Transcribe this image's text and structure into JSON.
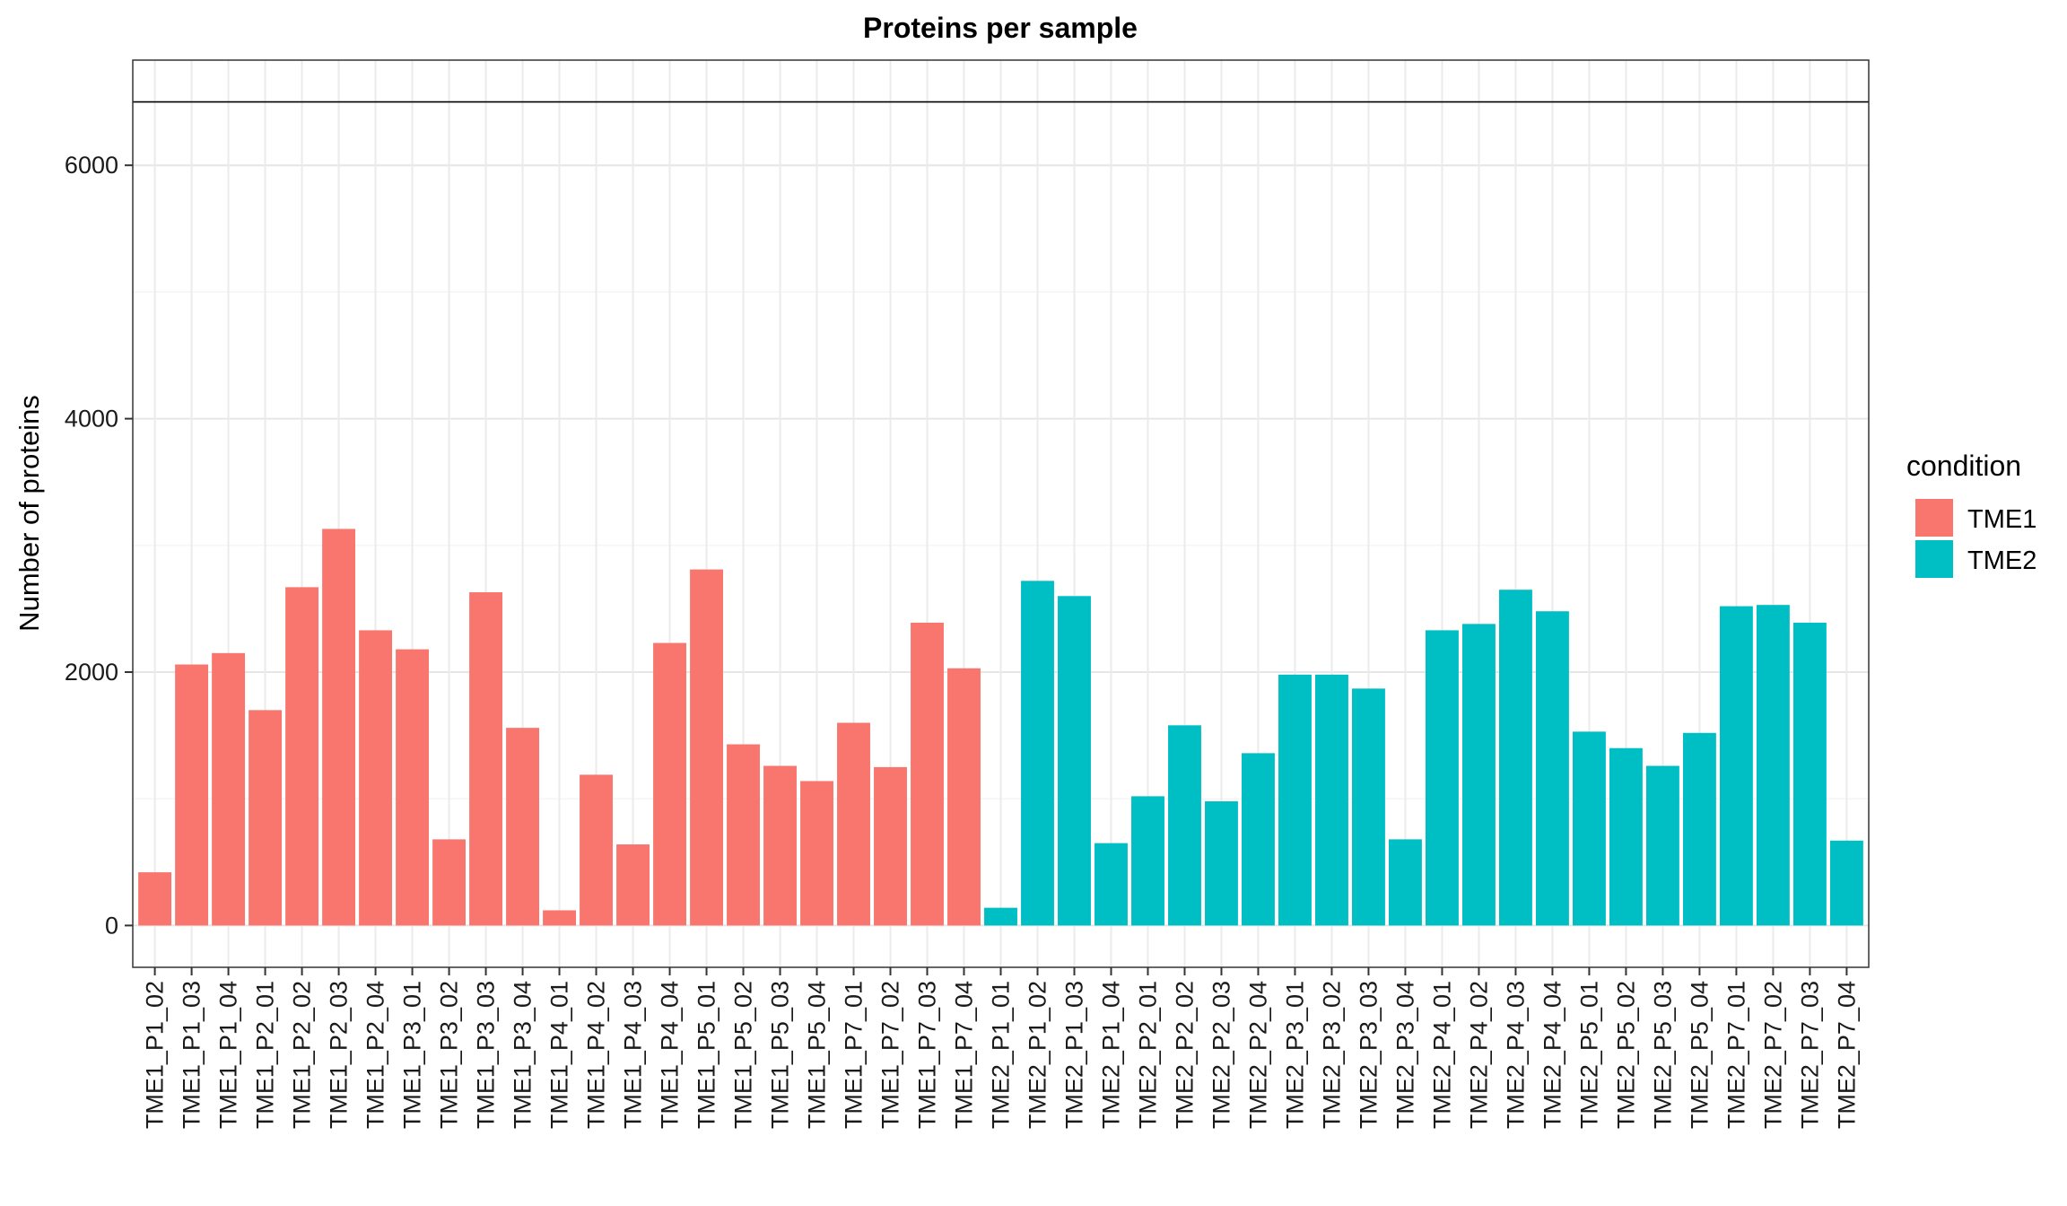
{
  "chart_data": {
    "type": "bar",
    "title": "Proteins per sample",
    "xlabel": "",
    "ylabel": "Number of proteins",
    "ylim": [
      -330,
      6830
    ],
    "yticks": [
      0,
      2000,
      4000,
      6000
    ],
    "reference_line": 6500,
    "grid": true,
    "legend": {
      "title": "condition",
      "position": "right",
      "entries": [
        {
          "label": "TME1",
          "color": "#F8766D"
        },
        {
          "label": "TME2",
          "color": "#00BFC4"
        }
      ]
    },
    "categories": [
      "TME1_P1_02",
      "TME1_P1_03",
      "TME1_P1_04",
      "TME1_P2_01",
      "TME1_P2_02",
      "TME1_P2_03",
      "TME1_P2_04",
      "TME1_P3_01",
      "TME1_P3_02",
      "TME1_P3_03",
      "TME1_P3_04",
      "TME1_P4_01",
      "TME1_P4_02",
      "TME1_P4_03",
      "TME1_P4_04",
      "TME1_P5_01",
      "TME1_P5_02",
      "TME1_P5_03",
      "TME1_P5_04",
      "TME1_P7_01",
      "TME1_P7_02",
      "TME1_P7_03",
      "TME1_P7_04",
      "TME2_P1_01",
      "TME2_P1_02",
      "TME2_P1_03",
      "TME2_P1_04",
      "TME2_P2_01",
      "TME2_P2_02",
      "TME2_P2_03",
      "TME2_P2_04",
      "TME2_P3_01",
      "TME2_P3_02",
      "TME2_P3_03",
      "TME2_P3_04",
      "TME2_P4_01",
      "TME2_P4_02",
      "TME2_P4_03",
      "TME2_P4_04",
      "TME2_P5_01",
      "TME2_P5_02",
      "TME2_P5_03",
      "TME2_P5_04",
      "TME2_P7_01",
      "TME2_P7_02",
      "TME2_P7_03",
      "TME2_P7_04"
    ],
    "values": [
      420,
      2060,
      2150,
      1700,
      2670,
      3130,
      2330,
      2180,
      680,
      2630,
      1560,
      120,
      1190,
      640,
      2230,
      2810,
      1430,
      1260,
      1140,
      1600,
      1250,
      2390,
      2030,
      140,
      2720,
      2600,
      650,
      1020,
      1580,
      980,
      1360,
      1980,
      1980,
      1870,
      680,
      2330,
      2380,
      2650,
      2480,
      1530,
      1400,
      1260,
      1520,
      2520,
      2530,
      2390,
      670
    ],
    "conditions": [
      "TME1",
      "TME1",
      "TME1",
      "TME1",
      "TME1",
      "TME1",
      "TME1",
      "TME1",
      "TME1",
      "TME1",
      "TME1",
      "TME1",
      "TME1",
      "TME1",
      "TME1",
      "TME1",
      "TME1",
      "TME1",
      "TME1",
      "TME1",
      "TME1",
      "TME1",
      "TME1",
      "TME2",
      "TME2",
      "TME2",
      "TME2",
      "TME2",
      "TME2",
      "TME2",
      "TME2",
      "TME2",
      "TME2",
      "TME2",
      "TME2",
      "TME2",
      "TME2",
      "TME2",
      "TME2",
      "TME2",
      "TME2",
      "TME2",
      "TME2",
      "TME2",
      "TME2",
      "TME2",
      "TME2"
    ]
  }
}
